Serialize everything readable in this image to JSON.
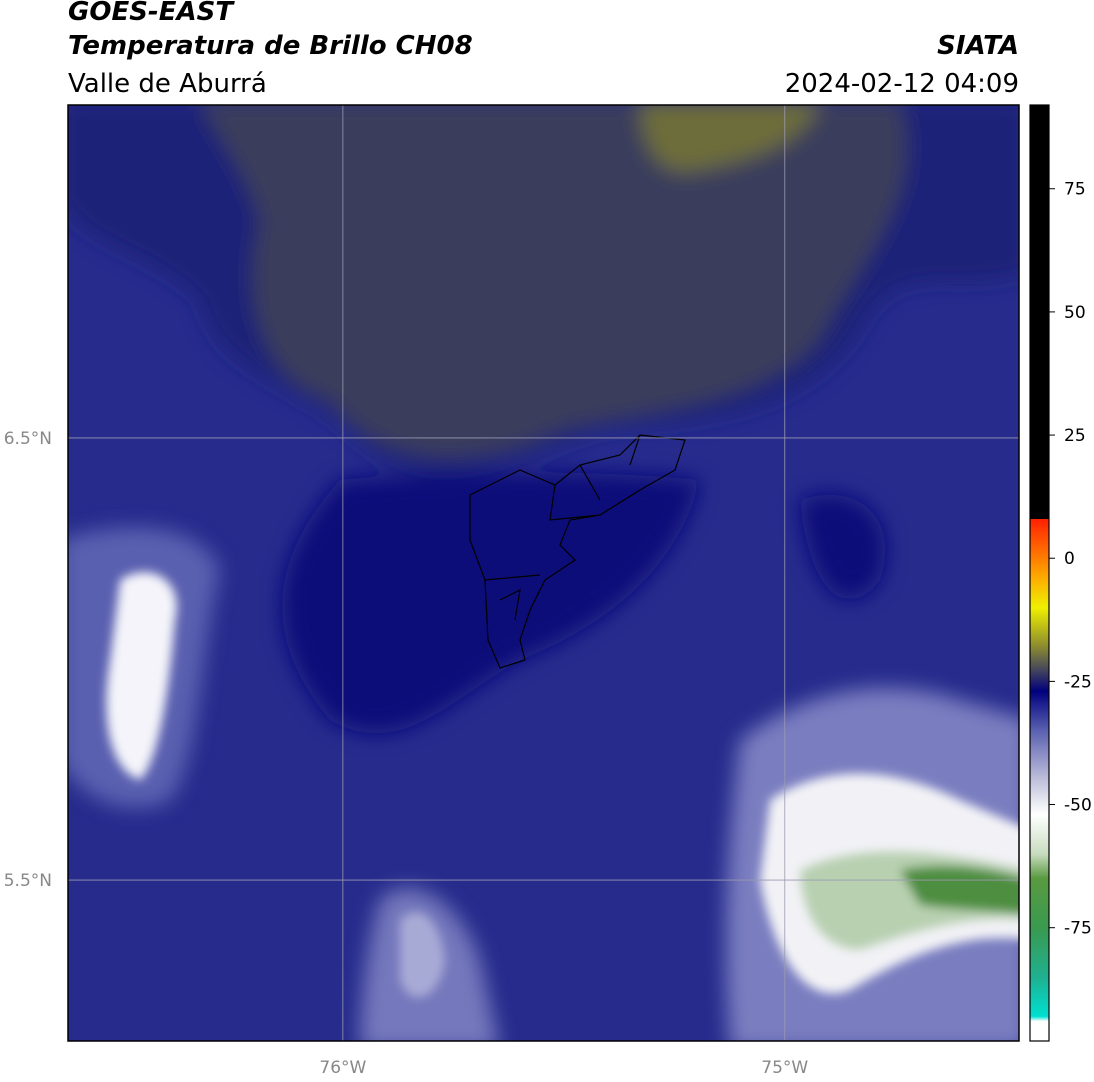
{
  "header": {
    "title": "GOES-EAST",
    "subtitle": "Temperatura de Brillo CH08",
    "region": "Valle de Aburrá",
    "source": "SIATA",
    "datetime": "2024-02-12 04:09"
  },
  "map": {
    "xlim": [
      -76.622,
      -74.47
    ],
    "ylim": [
      5.136,
      7.253
    ],
    "xticks": [
      {
        "value": -76,
        "label": "76°W"
      },
      {
        "value": -75,
        "label": "75°W"
      }
    ],
    "yticks": [
      {
        "value": 6.5,
        "label": "6.5°N"
      },
      {
        "value": 5.5,
        "label": "5.5°N"
      }
    ],
    "grid": true
  },
  "colorbar": {
    "lim": [
      -98,
      92
    ],
    "ticks": [
      75,
      50,
      25,
      0,
      -25,
      -50,
      -75
    ],
    "stops": [
      {
        "value": -98,
        "color": "#ffffff"
      },
      {
        "value": -94,
        "color": "#ffffff"
      },
      {
        "value": -93,
        "color": "#00e0d0"
      },
      {
        "value": -85,
        "color": "#20b090"
      },
      {
        "value": -75,
        "color": "#3a9a50"
      },
      {
        "value": -65,
        "color": "#5a9a40"
      },
      {
        "value": -60,
        "color": "#c8dcc0"
      },
      {
        "value": -52,
        "color": "#ffffff"
      },
      {
        "value": -45,
        "color": "#c0c0dc"
      },
      {
        "value": -35,
        "color": "#5a60b0"
      },
      {
        "value": -27,
        "color": "#00007e"
      },
      {
        "value": -23,
        "color": "#404060"
      },
      {
        "value": -18,
        "color": "#8a8a30"
      },
      {
        "value": -10,
        "color": "#f0f000"
      },
      {
        "value": -3,
        "color": "#ffa000"
      },
      {
        "value": 8,
        "color": "#ff2000"
      },
      {
        "value": 8,
        "color": "#000000"
      },
      {
        "value": 92,
        "color": "#000000"
      }
    ]
  }
}
